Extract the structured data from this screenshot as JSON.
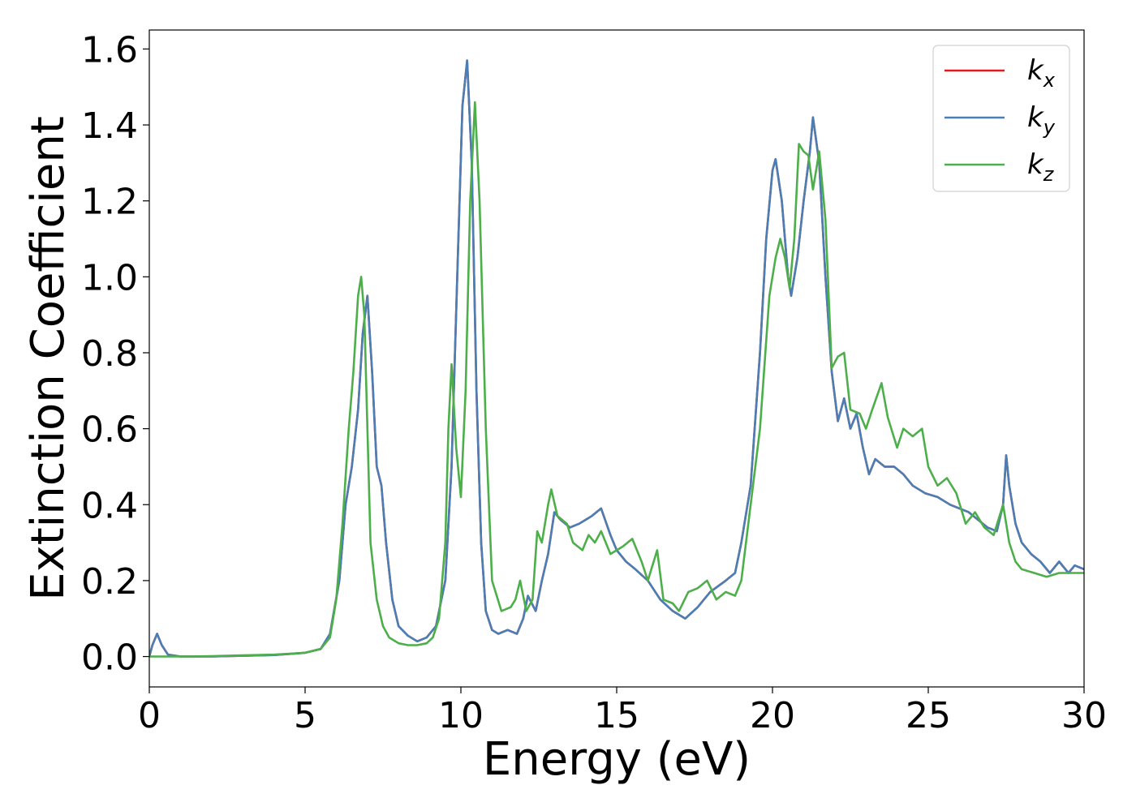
{
  "chart_data": {
    "type": "line",
    "title": "",
    "xlabel": "Energy (eV)",
    "ylabel": "Extinction Coefficient",
    "xlim": [
      0,
      30
    ],
    "ylim": [
      -0.08,
      1.65
    ],
    "xticks": [
      0,
      5,
      10,
      15,
      20,
      25,
      30
    ],
    "xtick_labels": [
      "0",
      "5",
      "10",
      "15",
      "20",
      "25",
      "30"
    ],
    "yticks": [
      0.0,
      0.2,
      0.4,
      0.6,
      0.8,
      1.0,
      1.2,
      1.4,
      1.6
    ],
    "ytick_labels": [
      "0.0",
      "0.2",
      "0.4",
      "0.6",
      "0.8",
      "1.0",
      "1.2",
      "1.4",
      "1.6"
    ],
    "grid": false,
    "legend_position": "top-right",
    "series": [
      {
        "name": "k",
        "subscript": "x",
        "color": "#e41a1c",
        "x": [
          0,
          0.1,
          0.25,
          0.4,
          0.6,
          1,
          2,
          3,
          4,
          5,
          5.5,
          5.8,
          6.1,
          6.3,
          6.5,
          6.7,
          6.85,
          7.0,
          7.15,
          7.3,
          7.45,
          7.6,
          7.8,
          8.0,
          8.3,
          8.6,
          8.9,
          9.2,
          9.5,
          9.7,
          9.9,
          10.05,
          10.2,
          10.35,
          10.5,
          10.65,
          10.8,
          11.0,
          11.2,
          11.5,
          11.8,
          12.0,
          12.15,
          12.4,
          12.6,
          12.8,
          13.0,
          13.2,
          13.5,
          13.8,
          14.0,
          14.2,
          14.5,
          14.8,
          15.0,
          15.3,
          15.6,
          16.0,
          16.4,
          16.8,
          17.2,
          17.6,
          18.0,
          18.5,
          18.8,
          19.0,
          19.3,
          19.6,
          19.8,
          20.0,
          20.1,
          20.3,
          20.5,
          20.6,
          20.8,
          21.0,
          21.2,
          21.3,
          21.5,
          21.7,
          21.9,
          22.1,
          22.3,
          22.5,
          22.7,
          22.9,
          23.1,
          23.3,
          23.6,
          23.9,
          24.2,
          24.5,
          24.9,
          25.3,
          25.7,
          26.0,
          26.3,
          26.6,
          26.9,
          27.2,
          27.4,
          27.5,
          27.6,
          27.8,
          28.0,
          28.3,
          28.6,
          28.9,
          29.2,
          29.5,
          29.7,
          30
        ],
        "values": [
          0.0,
          0.03,
          0.06,
          0.03,
          0.005,
          0.0,
          0.0,
          0.002,
          0.004,
          0.01,
          0.02,
          0.06,
          0.2,
          0.4,
          0.5,
          0.65,
          0.85,
          0.95,
          0.75,
          0.5,
          0.45,
          0.3,
          0.15,
          0.08,
          0.055,
          0.04,
          0.05,
          0.08,
          0.2,
          0.5,
          1.05,
          1.45,
          1.57,
          1.3,
          0.7,
          0.3,
          0.12,
          0.07,
          0.06,
          0.07,
          0.06,
          0.1,
          0.16,
          0.12,
          0.2,
          0.27,
          0.38,
          0.36,
          0.34,
          0.35,
          0.36,
          0.37,
          0.39,
          0.32,
          0.28,
          0.25,
          0.23,
          0.2,
          0.15,
          0.12,
          0.1,
          0.13,
          0.17,
          0.2,
          0.22,
          0.3,
          0.45,
          0.8,
          1.1,
          1.28,
          1.31,
          1.2,
          1.0,
          0.95,
          1.05,
          1.2,
          1.33,
          1.42,
          1.3,
          1.0,
          0.75,
          0.62,
          0.68,
          0.6,
          0.64,
          0.55,
          0.48,
          0.52,
          0.5,
          0.5,
          0.48,
          0.45,
          0.43,
          0.42,
          0.4,
          0.39,
          0.38,
          0.36,
          0.34,
          0.33,
          0.4,
          0.53,
          0.45,
          0.35,
          0.3,
          0.27,
          0.25,
          0.22,
          0.25,
          0.22,
          0.24,
          0.23
        ]
      },
      {
        "name": "k",
        "subscript": "y",
        "color": "#4a7fb5",
        "x": [
          0,
          0.1,
          0.25,
          0.4,
          0.6,
          1,
          2,
          3,
          4,
          5,
          5.5,
          5.8,
          6.1,
          6.3,
          6.5,
          6.7,
          6.85,
          7.0,
          7.15,
          7.3,
          7.45,
          7.6,
          7.8,
          8.0,
          8.3,
          8.6,
          8.9,
          9.2,
          9.5,
          9.7,
          9.9,
          10.05,
          10.2,
          10.35,
          10.5,
          10.65,
          10.8,
          11.0,
          11.2,
          11.5,
          11.8,
          12.0,
          12.15,
          12.4,
          12.6,
          12.8,
          13.0,
          13.2,
          13.5,
          13.8,
          14.0,
          14.2,
          14.5,
          14.8,
          15.0,
          15.3,
          15.6,
          16.0,
          16.4,
          16.8,
          17.2,
          17.6,
          18.0,
          18.5,
          18.8,
          19.0,
          19.3,
          19.6,
          19.8,
          20.0,
          20.1,
          20.3,
          20.5,
          20.6,
          20.8,
          21.0,
          21.2,
          21.3,
          21.5,
          21.7,
          21.9,
          22.1,
          22.3,
          22.5,
          22.7,
          22.9,
          23.1,
          23.3,
          23.6,
          23.9,
          24.2,
          24.5,
          24.9,
          25.3,
          25.7,
          26.0,
          26.3,
          26.6,
          26.9,
          27.2,
          27.4,
          27.5,
          27.6,
          27.8,
          28.0,
          28.3,
          28.6,
          28.9,
          29.2,
          29.5,
          29.7,
          30
        ],
        "values": [
          0.0,
          0.03,
          0.06,
          0.03,
          0.005,
          0.0,
          0.0,
          0.002,
          0.004,
          0.01,
          0.02,
          0.06,
          0.2,
          0.4,
          0.5,
          0.65,
          0.85,
          0.95,
          0.75,
          0.5,
          0.45,
          0.3,
          0.15,
          0.08,
          0.055,
          0.04,
          0.05,
          0.08,
          0.2,
          0.5,
          1.05,
          1.45,
          1.57,
          1.3,
          0.7,
          0.3,
          0.12,
          0.07,
          0.06,
          0.07,
          0.06,
          0.1,
          0.16,
          0.12,
          0.2,
          0.27,
          0.38,
          0.36,
          0.34,
          0.35,
          0.36,
          0.37,
          0.39,
          0.32,
          0.28,
          0.25,
          0.23,
          0.2,
          0.15,
          0.12,
          0.1,
          0.13,
          0.17,
          0.2,
          0.22,
          0.3,
          0.45,
          0.8,
          1.1,
          1.28,
          1.31,
          1.2,
          1.0,
          0.95,
          1.05,
          1.2,
          1.33,
          1.42,
          1.3,
          1.0,
          0.75,
          0.62,
          0.68,
          0.6,
          0.64,
          0.55,
          0.48,
          0.52,
          0.5,
          0.5,
          0.48,
          0.45,
          0.43,
          0.42,
          0.4,
          0.39,
          0.38,
          0.36,
          0.34,
          0.33,
          0.4,
          0.53,
          0.45,
          0.35,
          0.3,
          0.27,
          0.25,
          0.22,
          0.25,
          0.22,
          0.24,
          0.23
        ]
      },
      {
        "name": "k",
        "subscript": "z",
        "color": "#4daf4a",
        "x": [
          0,
          0.5,
          1,
          2,
          3,
          4,
          5,
          5.5,
          5.8,
          6.0,
          6.2,
          6.4,
          6.55,
          6.7,
          6.8,
          6.9,
          7.0,
          7.1,
          7.3,
          7.5,
          7.7,
          8.0,
          8.3,
          8.6,
          8.9,
          9.1,
          9.3,
          9.5,
          9.6,
          9.7,
          9.85,
          10.0,
          10.15,
          10.3,
          10.45,
          10.6,
          10.8,
          11.0,
          11.3,
          11.6,
          11.75,
          11.9,
          12.1,
          12.3,
          12.45,
          12.6,
          12.8,
          12.9,
          13.1,
          13.4,
          13.6,
          13.9,
          14.1,
          14.3,
          14.5,
          14.8,
          15.0,
          15.2,
          15.5,
          15.8,
          16.0,
          16.3,
          16.5,
          16.8,
          17.0,
          17.3,
          17.6,
          17.9,
          18.2,
          18.5,
          18.8,
          19.0,
          19.3,
          19.6,
          19.9,
          20.1,
          20.25,
          20.4,
          20.55,
          20.7,
          20.85,
          21.0,
          21.15,
          21.3,
          21.5,
          21.7,
          21.9,
          22.1,
          22.3,
          22.5,
          22.8,
          23.0,
          23.2,
          23.5,
          23.7,
          24.0,
          24.2,
          24.5,
          24.8,
          25.0,
          25.3,
          25.6,
          25.9,
          26.2,
          26.5,
          26.8,
          27.1,
          27.4,
          27.6,
          27.8,
          28.0,
          28.4,
          28.8,
          29.2,
          29.6,
          30
        ],
        "values": [
          0.0,
          0.0,
          0.0,
          0.001,
          0.003,
          0.005,
          0.01,
          0.02,
          0.05,
          0.15,
          0.35,
          0.6,
          0.75,
          0.95,
          1.0,
          0.9,
          0.6,
          0.3,
          0.15,
          0.08,
          0.05,
          0.035,
          0.03,
          0.03,
          0.035,
          0.05,
          0.1,
          0.3,
          0.6,
          0.77,
          0.55,
          0.42,
          0.7,
          1.2,
          1.46,
          1.2,
          0.6,
          0.2,
          0.12,
          0.13,
          0.15,
          0.2,
          0.12,
          0.15,
          0.33,
          0.3,
          0.4,
          0.44,
          0.37,
          0.35,
          0.3,
          0.28,
          0.32,
          0.3,
          0.33,
          0.27,
          0.28,
          0.29,
          0.31,
          0.25,
          0.2,
          0.28,
          0.15,
          0.14,
          0.12,
          0.17,
          0.18,
          0.2,
          0.15,
          0.17,
          0.16,
          0.2,
          0.4,
          0.6,
          0.95,
          1.05,
          1.1,
          1.05,
          0.97,
          1.1,
          1.35,
          1.33,
          1.32,
          1.23,
          1.33,
          1.15,
          0.76,
          0.79,
          0.8,
          0.65,
          0.64,
          0.6,
          0.65,
          0.72,
          0.63,
          0.55,
          0.6,
          0.58,
          0.6,
          0.5,
          0.45,
          0.47,
          0.43,
          0.35,
          0.38,
          0.34,
          0.32,
          0.4,
          0.3,
          0.25,
          0.23,
          0.22,
          0.21,
          0.22,
          0.22,
          0.22
        ]
      }
    ]
  }
}
